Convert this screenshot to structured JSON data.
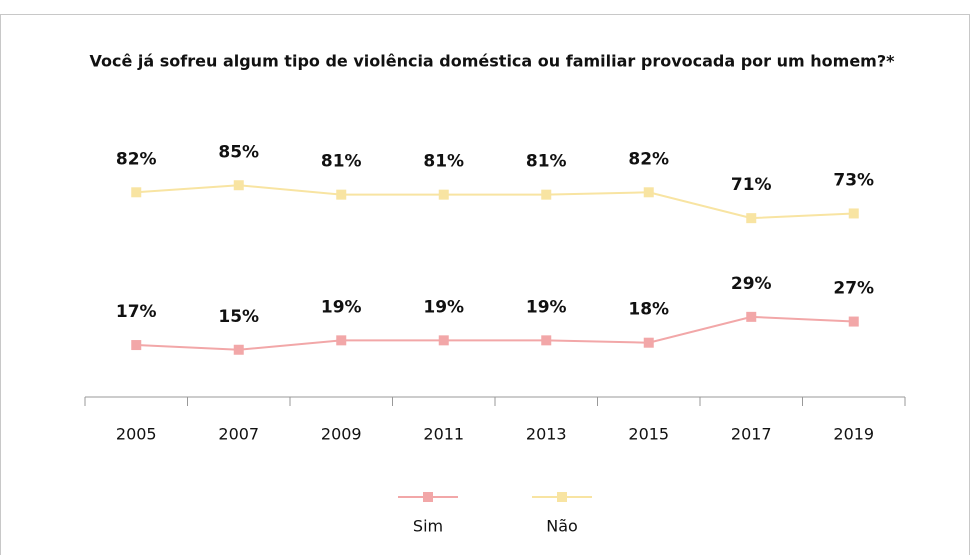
{
  "chart_data": {
    "type": "line",
    "title": "Você já sofreu algum tipo de violência doméstica ou familiar provocada por um homem?*",
    "categories": [
      "2005",
      "2007",
      "2009",
      "2011",
      "2013",
      "2015",
      "2017",
      "2019"
    ],
    "series": [
      {
        "name": "Sim",
        "color": "#f2a7a8",
        "values": [
          17,
          15,
          19,
          19,
          19,
          18,
          29,
          27
        ],
        "value_labels": [
          "17%",
          "15%",
          "19%",
          "19%",
          "19%",
          "18%",
          "29%",
          "27%"
        ]
      },
      {
        "name": "Não",
        "color": "#f8e4a2",
        "values": [
          82,
          85,
          81,
          81,
          81,
          82,
          71,
          73
        ],
        "value_labels": [
          "82%",
          "85%",
          "81%",
          "81%",
          "81%",
          "82%",
          "71%",
          "73%"
        ]
      }
    ],
    "ylim": [
      0,
      100
    ]
  }
}
